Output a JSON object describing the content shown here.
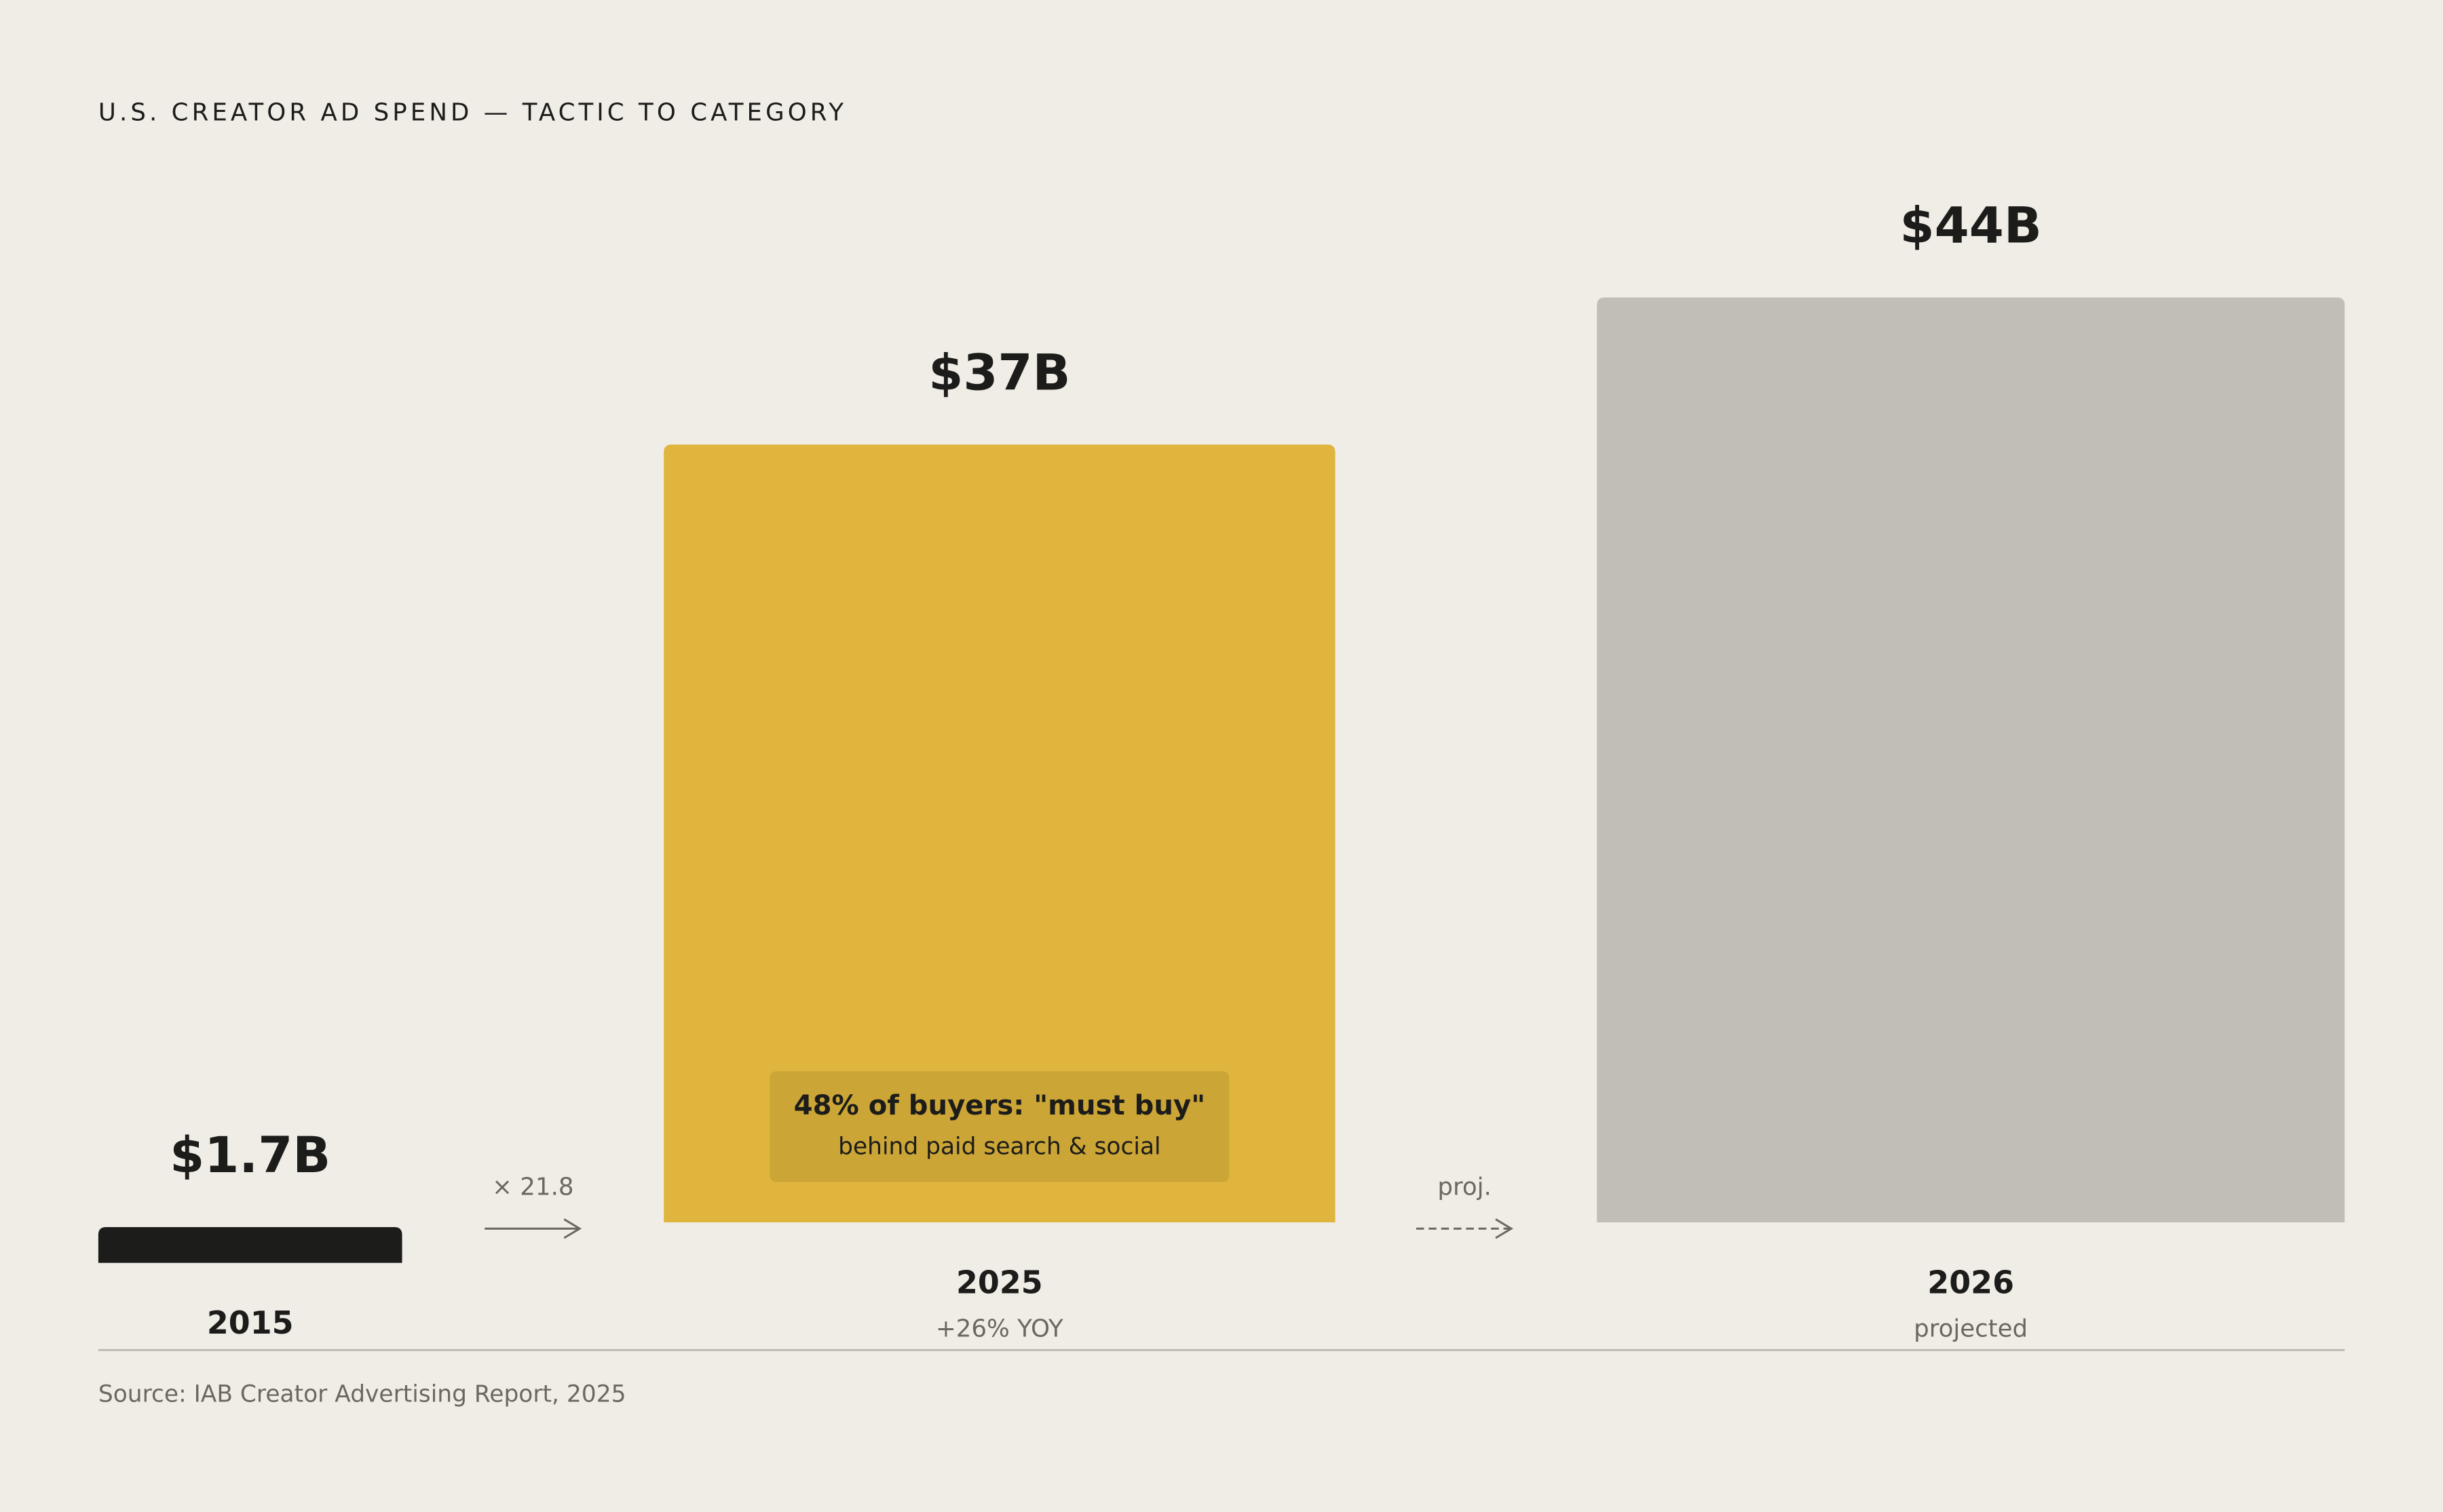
{
  "chart_data": {
    "type": "bar",
    "title": "U.S. CREATOR AD SPEND — TACTIC TO CATEGORY",
    "categories": [
      "2015",
      "2025",
      "2026"
    ],
    "sublabels": [
      null,
      "+26% YOY",
      "projected"
    ],
    "values": [
      1.7,
      37,
      44
    ],
    "value_labels": [
      "$1.7B",
      "$37B",
      "$44B"
    ],
    "colors": [
      "#1c1c1a",
      "#e0b53e",
      "#c1beb6"
    ],
    "transitions": [
      "× 21.8",
      "proj."
    ],
    "annotation": {
      "title": "48% of buyers: \"must buy\"",
      "subtitle": "behind paid search & social"
    },
    "source": "Source: IAB Creator Advertising Report, 2025"
  }
}
